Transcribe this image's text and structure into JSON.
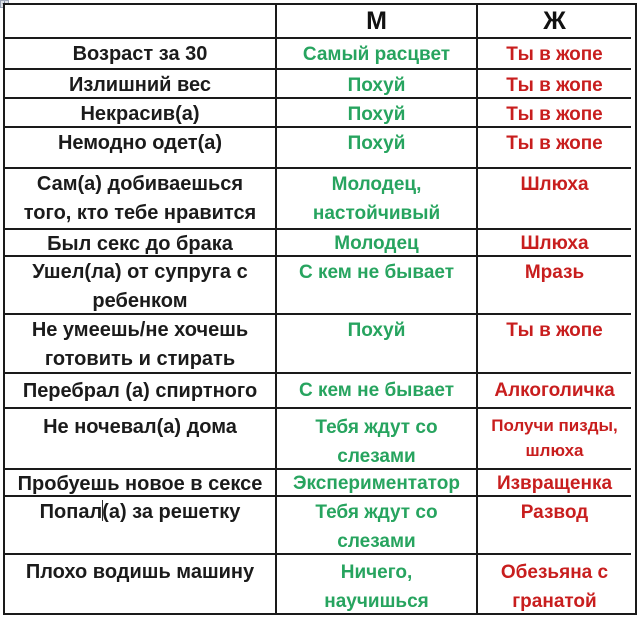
{
  "header": {
    "criterion": "",
    "male": "М",
    "female": "Ж"
  },
  "rows": [
    {
      "c": "Возраст за 30",
      "m": "Самый расцвет",
      "f": "Ты в жопе"
    },
    {
      "c": "Излишний вес",
      "m": "Похуй",
      "f": "Ты в жопе"
    },
    {
      "c": "Некрасив(а)",
      "m": "Похуй",
      "f": "Ты в жопе"
    },
    {
      "c": "Немодно одет(а)",
      "m": "Похуй",
      "f": "Ты в жопе"
    },
    {
      "c": "Сам(а) добиваешься\nтого, кто тебе нравится",
      "m": "Молодец,\nнастойчивый",
      "f": "Шлюха"
    },
    {
      "c": "Был секс до брака",
      "m": "Молодец",
      "f": "Шлюха"
    },
    {
      "c": "Ушел(ла)  от супруга с\nребенком",
      "m": "С кем не бывает",
      "f": "Мразь"
    },
    {
      "c": "Не умеешь/не хочешь\nготовить и стирать",
      "m": "Похуй",
      "f": "Ты в жопе"
    },
    {
      "c": "Перебрал (а) спиртного",
      "m": "С кем не бывает",
      "f": "Алкоголичка"
    },
    {
      "c": "Не ночевал(а) дома",
      "m": "Тебя ждут со\nслезами",
      "f": "Получи пизды,\nшлюха"
    },
    {
      "c": "Пробуешь новое в сексе",
      "m": "Экспериментатор",
      "f": "Извращенка"
    },
    {
      "c": "Попал(а) за решетку",
      "m": "Тебя ждут со\nслезами",
      "f": "Развод"
    },
    {
      "c": "Плохо водишь машину",
      "m": "Ничего,\nнаучишься",
      "f": "Обезьяна с\nгранатой"
    }
  ],
  "colors": {
    "male_response": "#27a45f",
    "female_response": "#c81e1e",
    "criterion_text": "#1b1b1b",
    "border": "#1a1a1a"
  },
  "artifacts": {
    "table_handle_icon": "+"
  }
}
